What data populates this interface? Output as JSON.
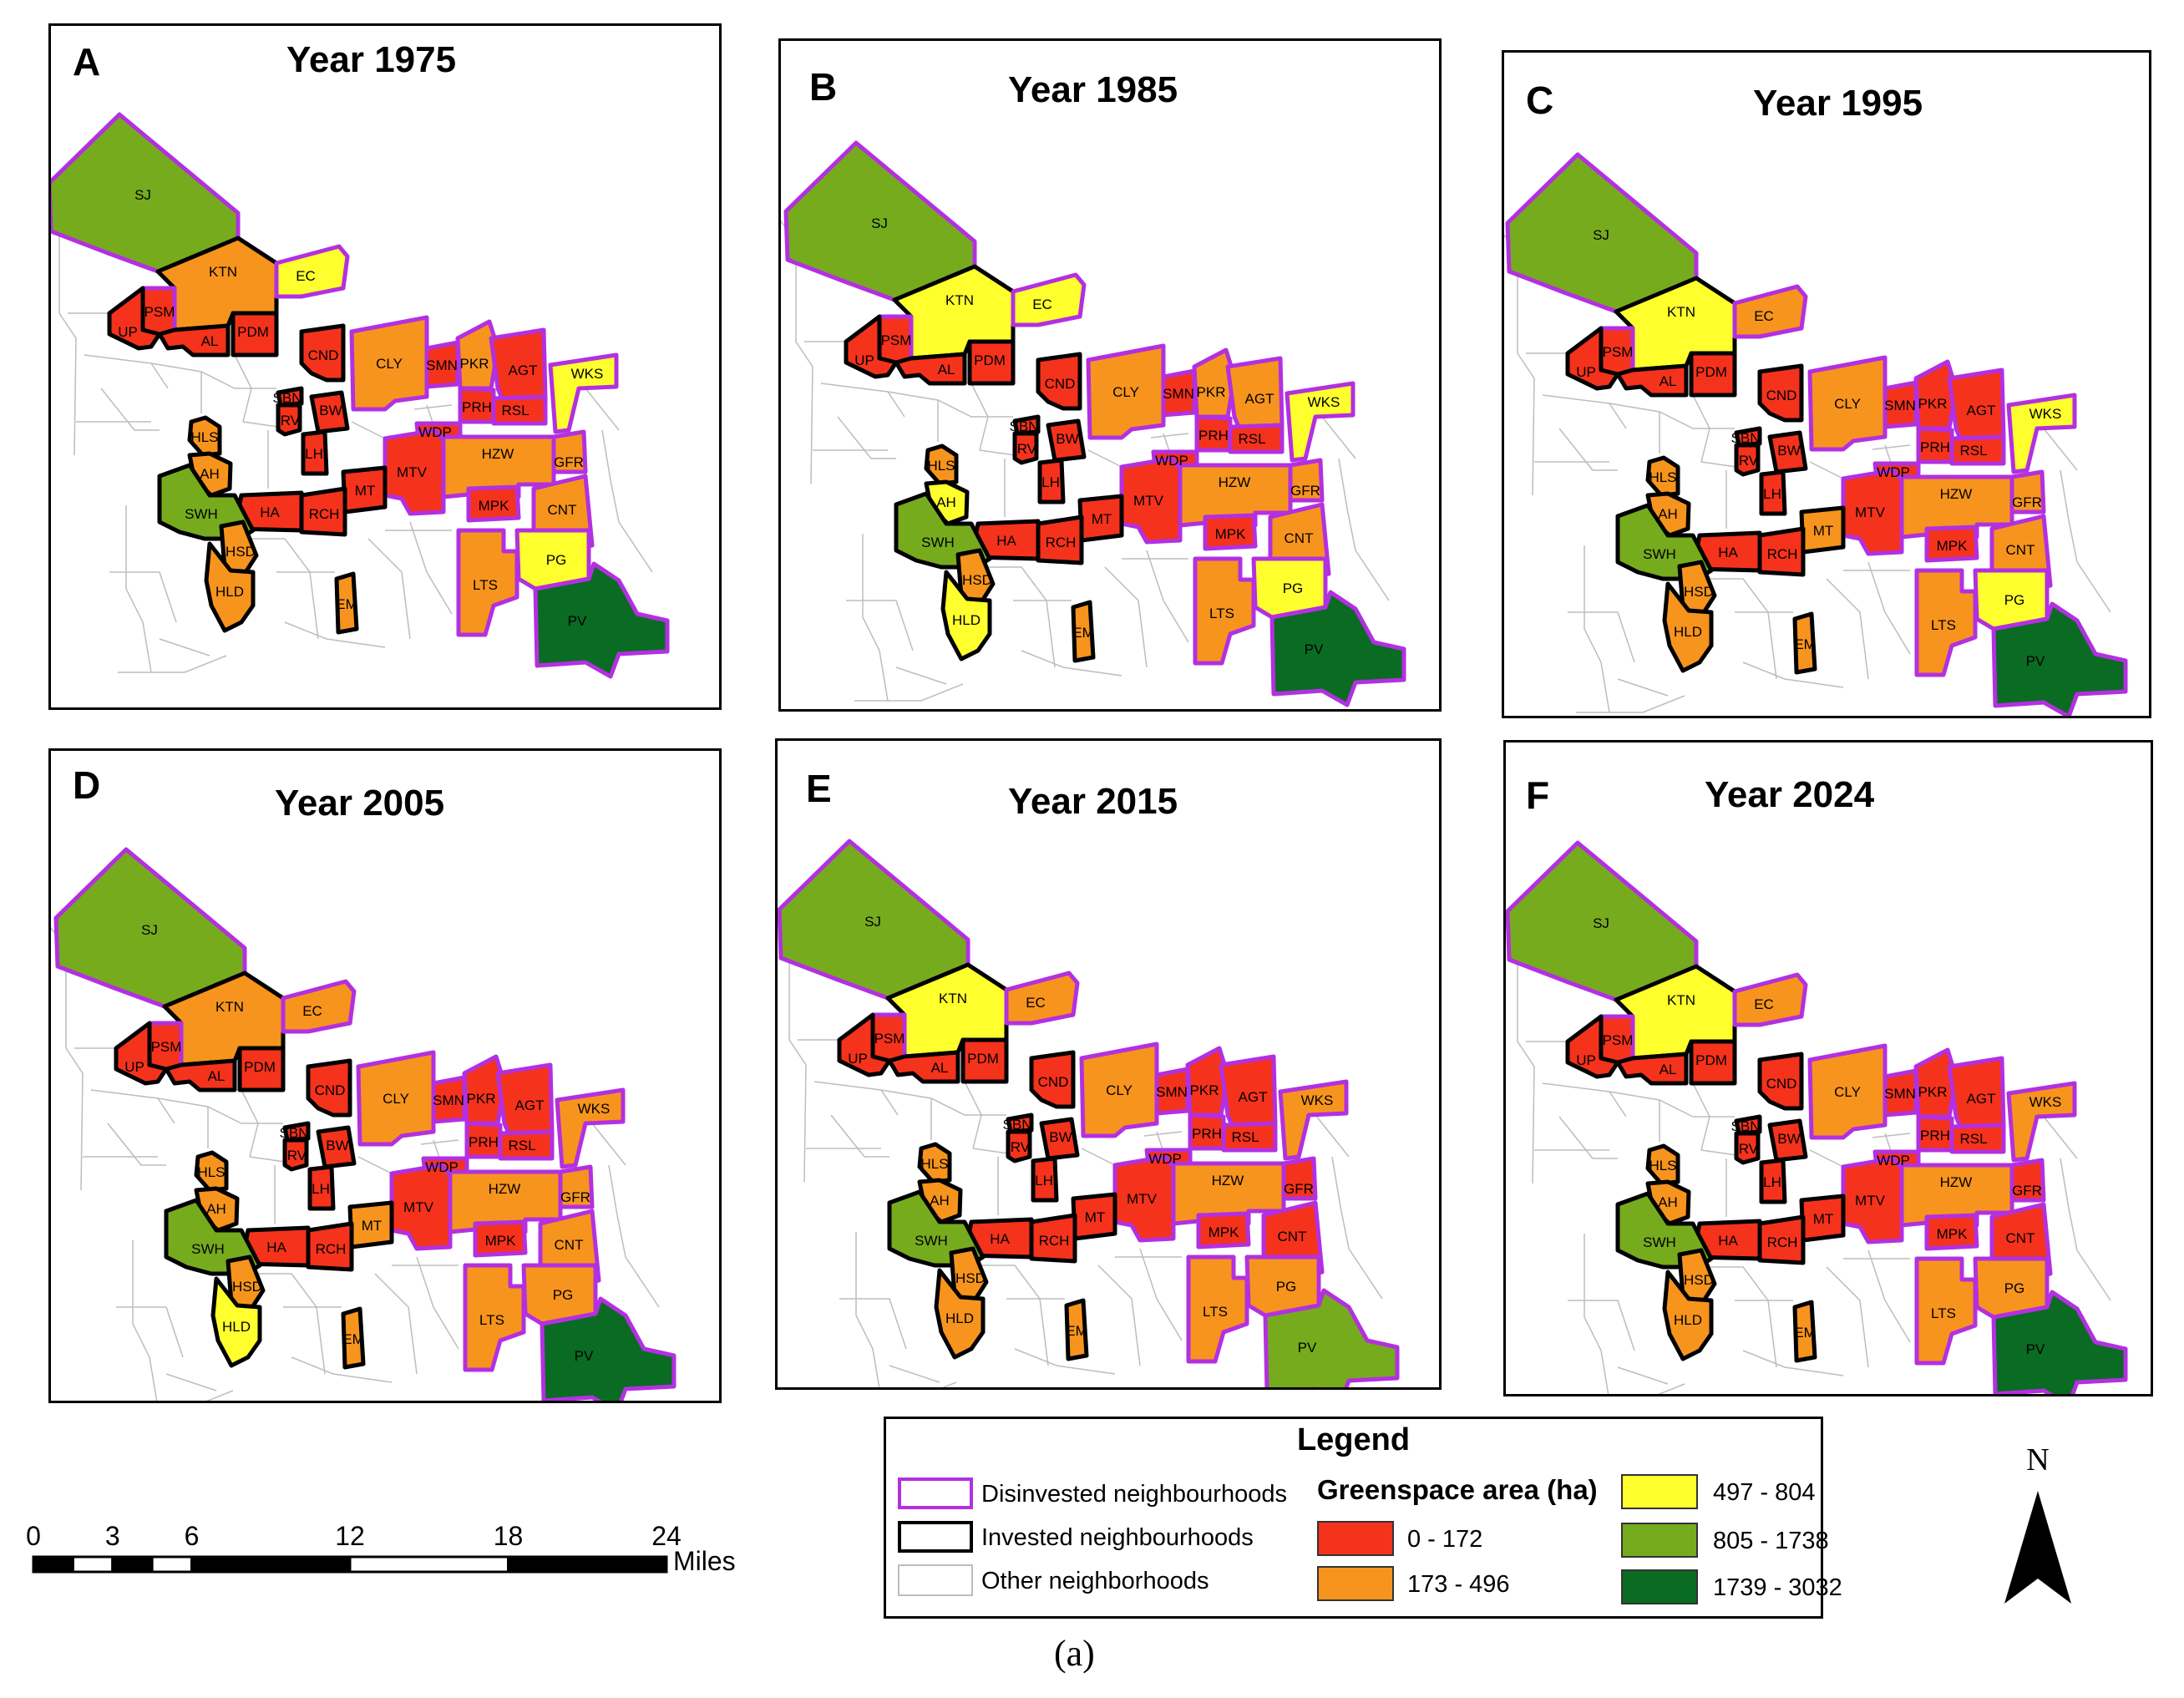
{
  "panels": [
    {
      "letter": "A",
      "title": "Year 1975",
      "classes": {
        "SJ": "c805",
        "KTN": "c173",
        "EC": "c497",
        "PSM": "c0",
        "UP": "c0",
        "AL": "c0",
        "PDM": "c0",
        "CND": "c0",
        "SBN": "c0",
        "IRV": "c0",
        "BW": "c0",
        "CLY": "c173",
        "SMN": "c0",
        "PKR": "c173",
        "AGT": "c0",
        "WKS": "c497",
        "PRH": "c0",
        "RSL": "c0",
        "WDP": "c0",
        "LH": "c0",
        "MTV": "c0",
        "HZW": "c173",
        "GFR": "c173",
        "MT": "c0",
        "MPK": "c0",
        "CNT": "c173",
        "HA": "c0",
        "RCH": "c0",
        "HLS": "c173",
        "AH": "c173",
        "SWH": "c805",
        "HSD": "c173",
        "HLD": "c173",
        "EM": "c173",
        "LTS": "c173",
        "PG": "c497",
        "PV": "c1739"
      }
    },
    {
      "letter": "B",
      "title": "Year 1985",
      "classes": {
        "SJ": "c805",
        "KTN": "c497",
        "EC": "c497",
        "PSM": "c0",
        "UP": "c0",
        "AL": "c0",
        "PDM": "c0",
        "CND": "c0",
        "SBN": "c0",
        "IRV": "c0",
        "BW": "c0",
        "CLY": "c173",
        "SMN": "c0",
        "PKR": "c173",
        "AGT": "c173",
        "WKS": "c497",
        "PRH": "c0",
        "RSL": "c0",
        "WDP": "c0",
        "LH": "c0",
        "MTV": "c0",
        "HZW": "c173",
        "GFR": "c173",
        "MT": "c0",
        "MPK": "c0",
        "CNT": "c173",
        "HA": "c0",
        "RCH": "c0",
        "HLS": "c173",
        "AH": "c497",
        "SWH": "c805",
        "HSD": "c173",
        "HLD": "c497",
        "EM": "c173",
        "LTS": "c173",
        "PG": "c497",
        "PV": "c1739"
      }
    },
    {
      "letter": "C",
      "title": "Year 1995",
      "classes": {
        "SJ": "c805",
        "KTN": "c497",
        "EC": "c173",
        "PSM": "c0",
        "UP": "c0",
        "AL": "c0",
        "PDM": "c0",
        "CND": "c0",
        "SBN": "c0",
        "IRV": "c0",
        "BW": "c0",
        "CLY": "c173",
        "SMN": "c0",
        "PKR": "c0",
        "AGT": "c0",
        "WKS": "c497",
        "PRH": "c0",
        "RSL": "c0",
        "WDP": "c0",
        "LH": "c0",
        "MTV": "c0",
        "HZW": "c173",
        "GFR": "c173",
        "MT": "c173",
        "MPK": "c0",
        "CNT": "c173",
        "HA": "c0",
        "RCH": "c0",
        "HLS": "c173",
        "AH": "c173",
        "SWH": "c805",
        "HSD": "c173",
        "HLD": "c173",
        "EM": "c173",
        "LTS": "c173",
        "PG": "c497",
        "PV": "c1739"
      }
    },
    {
      "letter": "D",
      "title": "Year 2005",
      "classes": {
        "SJ": "c805",
        "KTN": "c173",
        "EC": "c173",
        "PSM": "c0",
        "UP": "c0",
        "AL": "c0",
        "PDM": "c0",
        "CND": "c0",
        "SBN": "c0",
        "IRV": "c0",
        "BW": "c0",
        "CLY": "c173",
        "SMN": "c0",
        "PKR": "c0",
        "AGT": "c0",
        "WKS": "c173",
        "PRH": "c0",
        "RSL": "c0",
        "WDP": "c0",
        "LH": "c0",
        "MTV": "c0",
        "HZW": "c173",
        "GFR": "c173",
        "MT": "c173",
        "MPK": "c0",
        "CNT": "c173",
        "HA": "c0",
        "RCH": "c0",
        "HLS": "c173",
        "AH": "c173",
        "SWH": "c805",
        "HSD": "c173",
        "HLD": "c497",
        "EM": "c173",
        "LTS": "c173",
        "PG": "c173",
        "PV": "c1739"
      }
    },
    {
      "letter": "E",
      "title": "Year 2015",
      "classes": {
        "SJ": "c805",
        "KTN": "c497",
        "EC": "c173",
        "PSM": "c0",
        "UP": "c0",
        "AL": "c0",
        "PDM": "c0",
        "CND": "c0",
        "SBN": "c0",
        "IRV": "c0",
        "BW": "c0",
        "CLY": "c173",
        "SMN": "c0",
        "PKR": "c0",
        "AGT": "c0",
        "WKS": "c173",
        "PRH": "c0",
        "RSL": "c0",
        "WDP": "c0",
        "LH": "c0",
        "MTV": "c0",
        "HZW": "c173",
        "GFR": "c0",
        "MT": "c0",
        "MPK": "c0",
        "CNT": "c0",
        "HA": "c0",
        "RCH": "c0",
        "HLS": "c173",
        "AH": "c173",
        "SWH": "c805",
        "HSD": "c173",
        "HLD": "c173",
        "EM": "c173",
        "LTS": "c173",
        "PG": "c173",
        "PV": "c805"
      }
    },
    {
      "letter": "F",
      "title": "Year 2024",
      "classes": {
        "SJ": "c805",
        "KTN": "c497",
        "EC": "c173",
        "PSM": "c0",
        "UP": "c0",
        "AL": "c0",
        "PDM": "c0",
        "CND": "c0",
        "SBN": "c0",
        "IRV": "c0",
        "BW": "c0",
        "CLY": "c173",
        "SMN": "c0",
        "PKR": "c0",
        "AGT": "c0",
        "WKS": "c173",
        "PRH": "c0",
        "RSL": "c0",
        "WDP": "c0",
        "LH": "c0",
        "MTV": "c0",
        "HZW": "c173",
        "GFR": "c0",
        "MT": "c0",
        "MPK": "c0",
        "CNT": "c0",
        "HA": "c0",
        "RCH": "c0",
        "HLS": "c173",
        "AH": "c173",
        "SWH": "c805",
        "HSD": "c173",
        "HLD": "c173",
        "EM": "c173",
        "LTS": "c173",
        "PG": "c173",
        "PV": "c1739"
      }
    }
  ],
  "status": {
    "SJ": "disinvested",
    "KTN": "invested",
    "EC": "disinvested",
    "PSM": "disinvested",
    "UP": "invested",
    "AL": "invested",
    "PDM": "invested",
    "CND": "invested",
    "SBN": "invested",
    "IRV": "invested",
    "BW": "invested",
    "CLY": "disinvested",
    "SMN": "disinvested",
    "PKR": "disinvested",
    "AGT": "disinvested",
    "WKS": "disinvested",
    "PRH": "disinvested",
    "RSL": "disinvested",
    "WDP": "disinvested",
    "LH": "invested",
    "MTV": "disinvested",
    "HZW": "disinvested",
    "GFR": "disinvested",
    "MT": "invested",
    "MPK": "disinvested",
    "CNT": "disinvested",
    "HA": "invested",
    "RCH": "invested",
    "HLS": "invested",
    "AH": "invested",
    "SWH": "invested",
    "HSD": "invested",
    "HLD": "invested",
    "EM": "invested",
    "LTS": "disinvested",
    "PG": "disinvested",
    "PV": "disinvested"
  },
  "colors": {
    "c0": "#f5321c",
    "c173": "#f7941d",
    "c497": "#ffff2e",
    "c805": "#76ab1d",
    "c1739": "#0a6b23",
    "disinvested_border": "#b330e0",
    "invested_border": "#000000",
    "other_border": "#bdbdbd"
  },
  "legend": {
    "title": "Legend",
    "disinvested": "Disinvested neighbourhoods",
    "invested": "Invested neighbourhoods",
    "other": "Other neighborhoods",
    "greenspace_title": "Greenspace area (ha)",
    "classes": [
      {
        "key": "c0",
        "label": "0 - 172"
      },
      {
        "key": "c173",
        "label": "173 - 496"
      },
      {
        "key": "c497",
        "label": "497 - 804"
      },
      {
        "key": "c805",
        "label": "805 - 1738"
      },
      {
        "key": "c1739",
        "label": "1739 - 3032"
      }
    ]
  },
  "scale_bar": {
    "ticks": [
      "0",
      "3",
      "6",
      "12",
      "18",
      "24"
    ],
    "unit": "Miles"
  },
  "north": "N",
  "caption": "(a)"
}
